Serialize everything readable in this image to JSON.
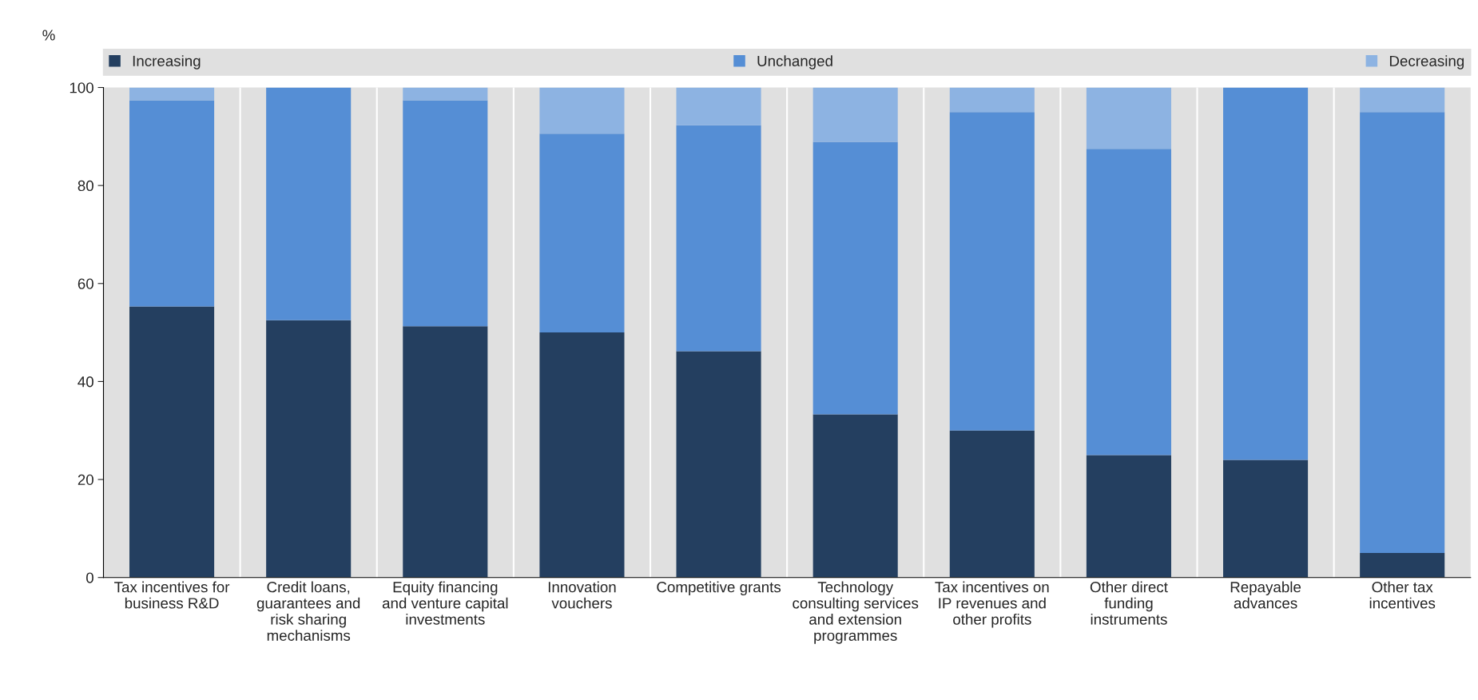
{
  "chart_data": {
    "type": "bar",
    "stacked": true,
    "ylabel": "%",
    "categories": [
      "Tax incentives for\nbusiness R&D",
      "Credit loans,\nguarantees and\nrisk sharing\nmechanisms",
      "Equity financing\nand venture capital\ninvestments",
      "Innovation\nvouchers",
      "Competitive grants",
      "Technology\nconsulting services\nand extension\nprogrammes",
      "Tax incentives on\nIP revenues and\nother profits",
      "Other direct\nfunding\ninstruments",
      "Repayable\nadvances",
      "Other tax\nincentives"
    ],
    "series": [
      {
        "name": "Increasing",
        "color": "#243f60",
        "values": [
          55.3,
          52.5,
          51.3,
          50.0,
          46.2,
          33.3,
          30.0,
          25.0,
          24.0,
          5.0
        ]
      },
      {
        "name": "Unchanged",
        "color": "#558ed5",
        "values": [
          42.1,
          47.5,
          46.1,
          40.6,
          46.1,
          55.6,
          65.0,
          62.5,
          76.0,
          90.0
        ]
      },
      {
        "name": "Decreasing",
        "color": "#8db3e2",
        "values": [
          2.6,
          null,
          2.6,
          9.4,
          7.7,
          11.1,
          5.0,
          12.5,
          null,
          5.0
        ]
      }
    ],
    "ylim": [
      0,
      100
    ],
    "yticks": [
      0,
      20,
      40,
      60,
      80,
      100
    ],
    "grid": false,
    "legend": "top"
  }
}
